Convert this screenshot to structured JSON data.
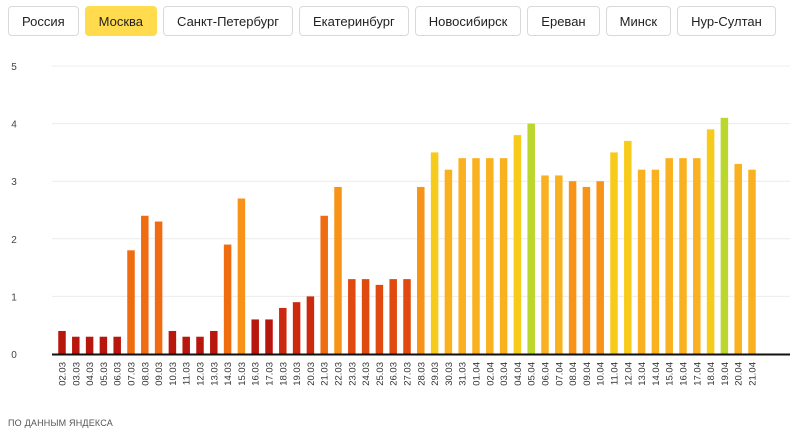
{
  "tabs": [
    {
      "label": "Россия",
      "active": false
    },
    {
      "label": "Москва",
      "active": true
    },
    {
      "label": "Санкт-Петербург",
      "active": false
    },
    {
      "label": "Екатеринбург",
      "active": false
    },
    {
      "label": "Новосибирск",
      "active": false
    },
    {
      "label": "Ереван",
      "active": false
    },
    {
      "label": "Минск",
      "active": false
    },
    {
      "label": "Нур-Султан",
      "active": false
    }
  ],
  "footer": "ПО ДАННЫМ ЯНДЕКСА",
  "chart_data": {
    "type": "bar",
    "title": "",
    "xlabel": "",
    "ylabel": "",
    "ylim": [
      0,
      5
    ],
    "yticks": [
      "0",
      "1",
      "2",
      "3",
      "4",
      "5"
    ],
    "grid": true,
    "categories": [
      "02.03",
      "03.03",
      "04.03",
      "05.03",
      "06.03",
      "07.03",
      "08.03",
      "09.03",
      "10.03",
      "11.03",
      "12.03",
      "13.03",
      "14.03",
      "15.03",
      "16.03",
      "17.03",
      "18.03",
      "19.03",
      "20.03",
      "21.03",
      "22.03",
      "23.03",
      "24.03",
      "25.03",
      "26.03",
      "27.03",
      "28.03",
      "29.03",
      "30.03",
      "31.03",
      "01.04",
      "02.04",
      "03.04",
      "04.04",
      "05.04",
      "06.04",
      "07.04",
      "08.04",
      "09.04",
      "10.04",
      "11.04",
      "12.04",
      "13.04",
      "14.04",
      "15.04",
      "16.04",
      "17.04",
      "18.04",
      "19.04",
      "20.04",
      "21.04"
    ],
    "values": [
      0.4,
      0.3,
      0.3,
      0.3,
      0.3,
      1.8,
      2.4,
      2.3,
      0.4,
      0.3,
      0.3,
      0.4,
      1.9,
      2.7,
      0.6,
      0.6,
      0.8,
      0.9,
      1.0,
      2.4,
      2.9,
      1.3,
      1.3,
      1.2,
      1.3,
      1.3,
      2.9,
      3.5,
      3.2,
      3.4,
      3.4,
      3.4,
      3.4,
      3.8,
      4.0,
      3.1,
      3.1,
      3.0,
      2.9,
      3.0,
      3.5,
      3.7,
      3.2,
      3.2,
      3.4,
      3.4,
      3.4,
      3.9,
      4.1,
      3.3,
      3.2
    ],
    "colors": {
      "dark_red": "#b8170d",
      "red": "#cc2a0f",
      "red_orange": "#e0490f",
      "orange": "#f06c11",
      "orange_light": "#f79418",
      "amber": "#f9b11f",
      "yellow": "#f7cb1b",
      "yellow_green": "#bbd62c"
    }
  }
}
